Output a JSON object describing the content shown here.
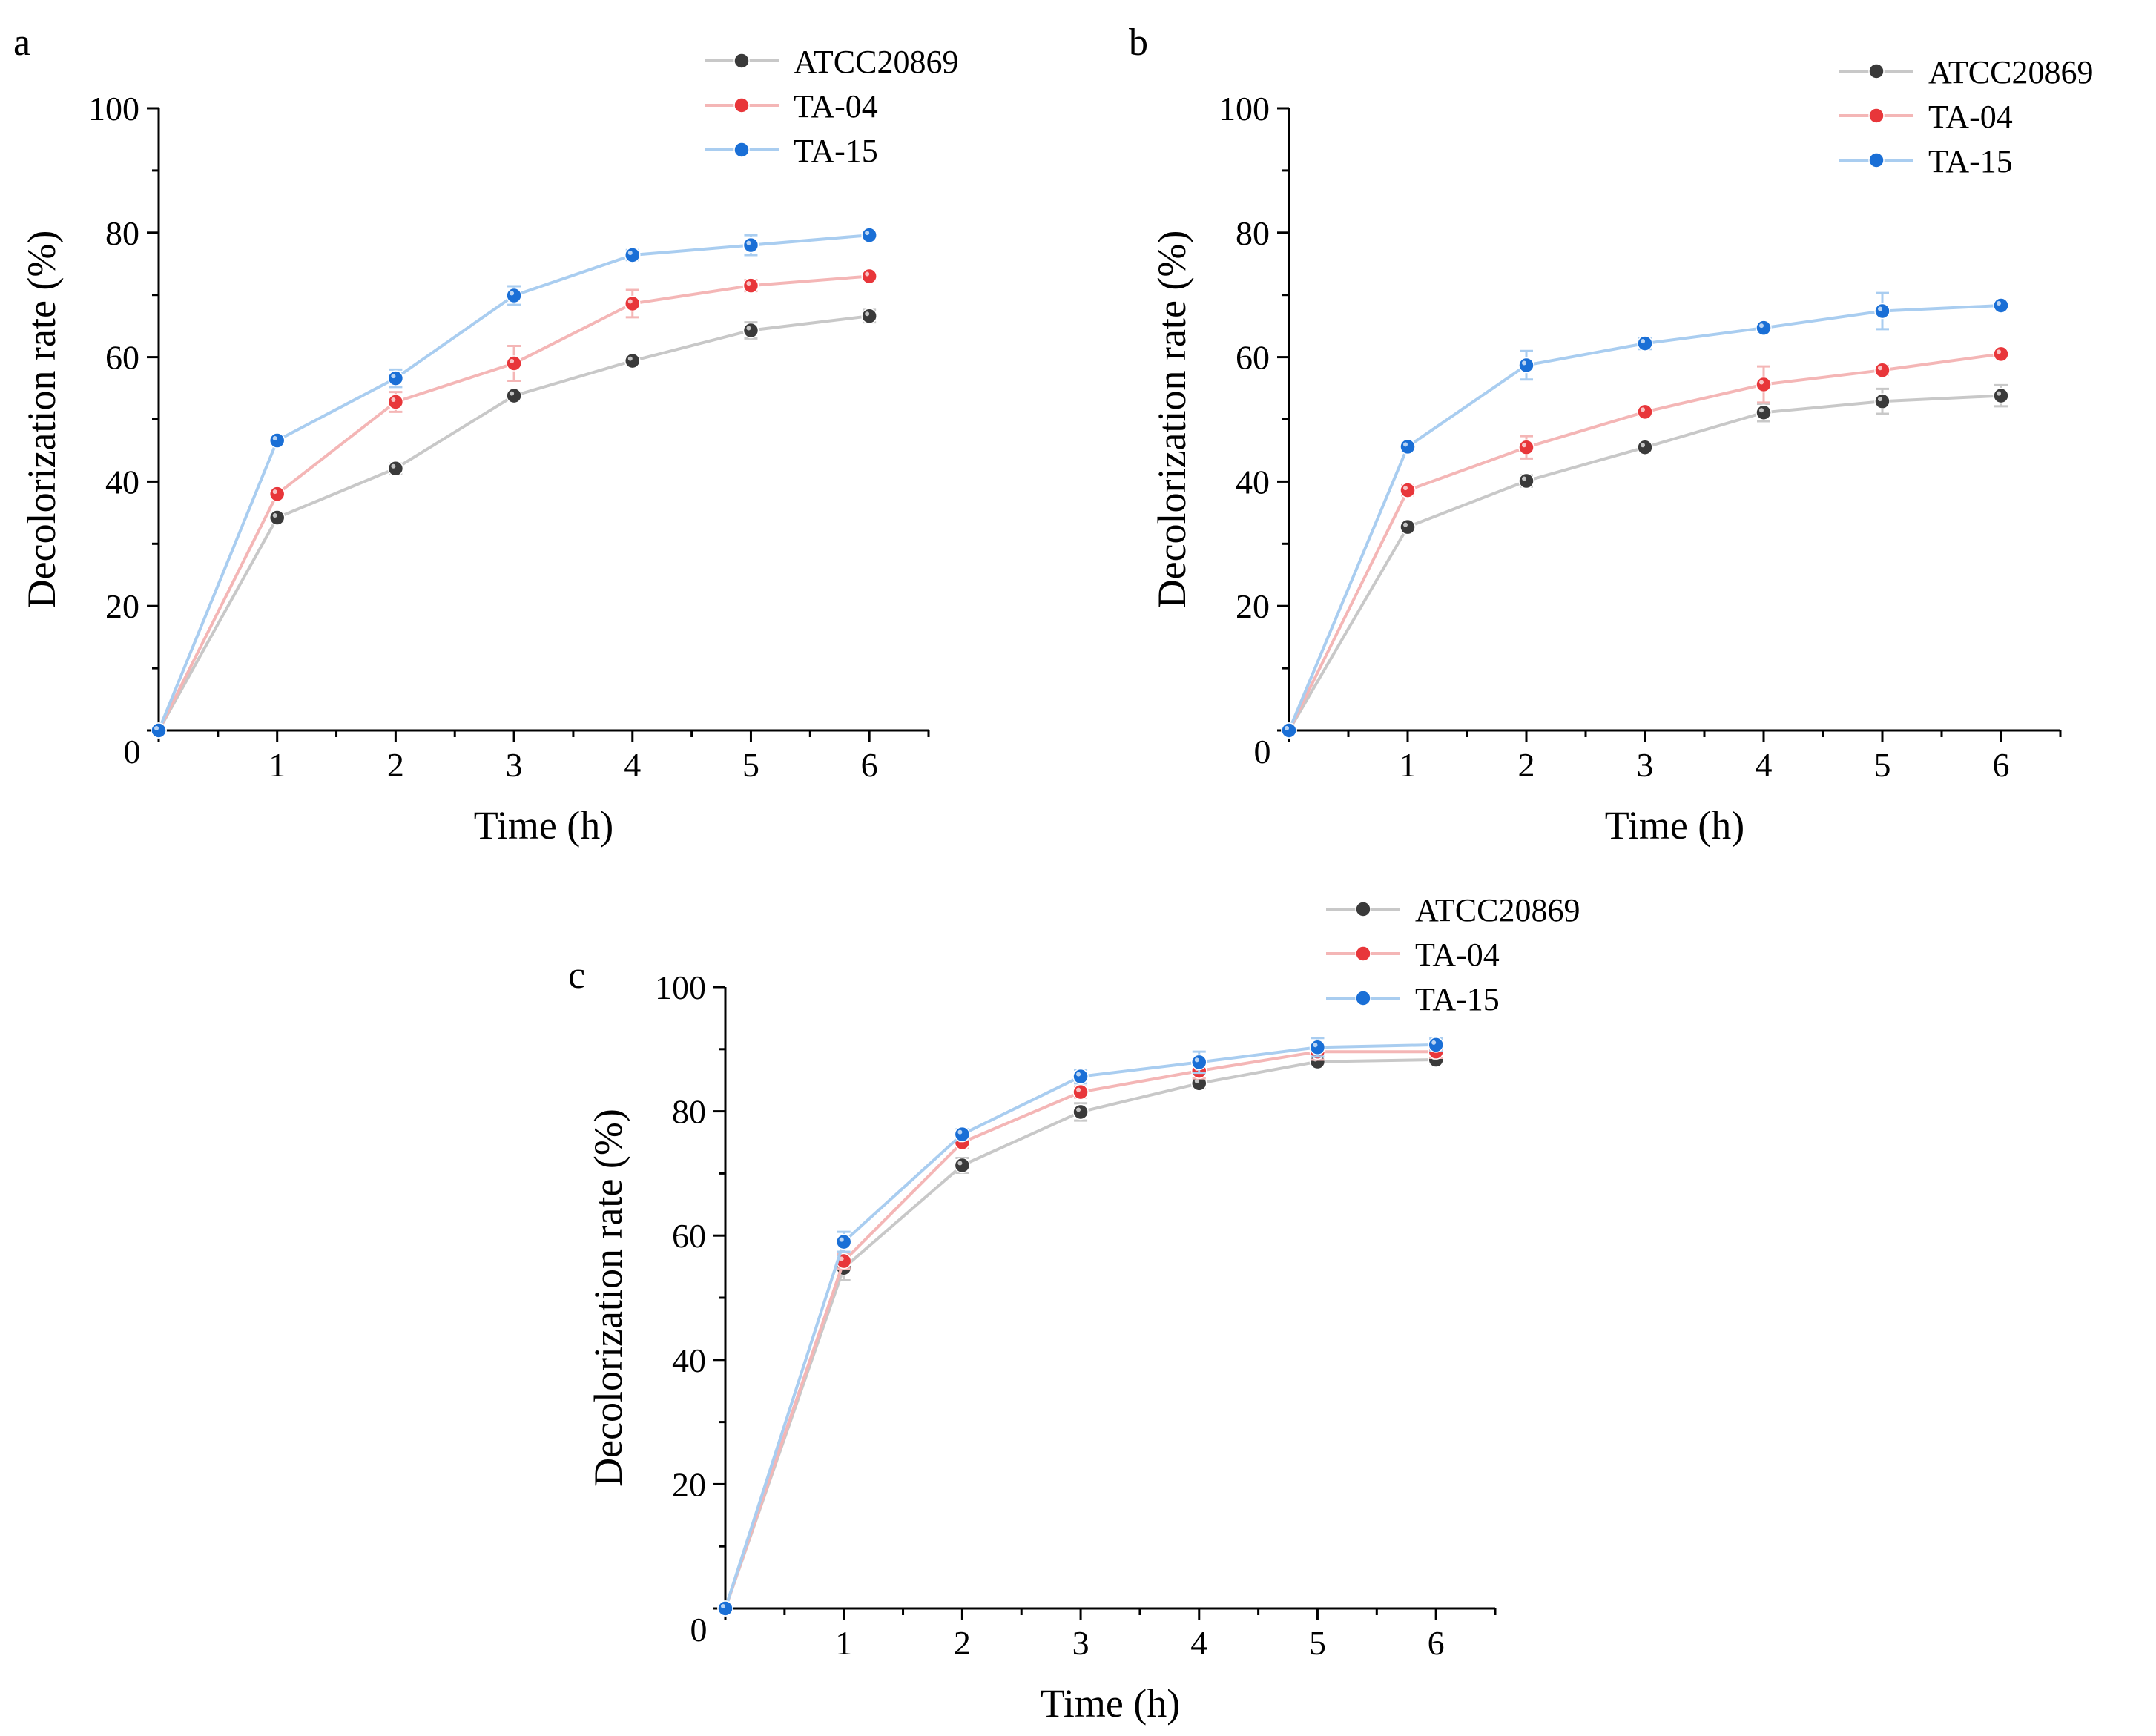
{
  "figure": {
    "colors": {
      "ATCC20869": {
        "line": "#c8c8c8",
        "marker": "#3a3a3a"
      },
      "TA-04": {
        "line": "#f4b6b6",
        "marker": "#e8363a"
      },
      "TA-15": {
        "line": "#a9cdf0",
        "marker": "#1a6fd6"
      }
    }
  },
  "chart_data": [
    {
      "panel": "a",
      "type": "line",
      "xlabel": "Time (h)",
      "ylabel": "Decolorization rate (%)",
      "xlim": [
        0,
        6.5
      ],
      "ylim": [
        0,
        100
      ],
      "x_ticks": [
        0,
        1,
        2,
        3,
        4,
        5,
        6
      ],
      "y_ticks": [
        0,
        20,
        40,
        60,
        80,
        100
      ],
      "legend_position": "top-right",
      "x": [
        0,
        1,
        2,
        3,
        4,
        5,
        6
      ],
      "series": [
        {
          "name": "ATCC20869",
          "values": [
            0,
            34.2,
            42.1,
            53.8,
            59.4,
            64.3,
            66.6
          ],
          "errors": [
            0,
            0.6,
            0.8,
            0.6,
            0.6,
            1.3,
            1.0
          ]
        },
        {
          "name": "TA-04",
          "values": [
            0,
            38.0,
            52.8,
            59.0,
            68.6,
            71.5,
            73.0
          ],
          "errors": [
            0,
            0.5,
            1.6,
            2.8,
            2.2,
            0.9,
            0.6
          ]
        },
        {
          "name": "TA-15",
          "values": [
            0,
            46.6,
            56.6,
            69.9,
            76.4,
            78.0,
            79.6
          ],
          "errors": [
            0,
            0.5,
            1.4,
            1.5,
            0.8,
            1.6,
            0.5
          ]
        }
      ]
    },
    {
      "panel": "b",
      "type": "line",
      "xlabel": "Time (h)",
      "ylabel": "Decolorization rate (%)",
      "xlim": [
        0,
        6.5
      ],
      "ylim": [
        0,
        100
      ],
      "x_ticks": [
        0,
        1,
        2,
        3,
        4,
        5,
        6
      ],
      "y_ticks": [
        0,
        20,
        40,
        60,
        80,
        100
      ],
      "legend_position": "top-right",
      "x": [
        0,
        1,
        2,
        3,
        4,
        5,
        6
      ],
      "series": [
        {
          "name": "ATCC20869",
          "values": [
            0,
            32.7,
            40.1,
            45.5,
            51.1,
            52.9,
            53.8
          ],
          "errors": [
            0,
            0.6,
            0.9,
            0.6,
            1.4,
            2.0,
            1.7
          ]
        },
        {
          "name": "TA-04",
          "values": [
            0,
            38.6,
            45.5,
            51.2,
            55.6,
            57.9,
            60.5
          ],
          "errors": [
            0,
            0.8,
            1.8,
            0.6,
            2.9,
            0.7,
            0.6
          ]
        },
        {
          "name": "TA-15",
          "values": [
            0,
            45.6,
            58.7,
            62.2,
            64.7,
            67.4,
            68.3
          ],
          "errors": [
            0,
            0.6,
            2.3,
            0.9,
            0.6,
            2.9,
            0.6
          ]
        }
      ]
    },
    {
      "panel": "c",
      "type": "line",
      "xlabel": "Time (h)",
      "ylabel": "Decolorization rate (%)",
      "xlim": [
        0,
        6.5
      ],
      "ylim": [
        0,
        100
      ],
      "x_ticks": [
        0,
        1,
        2,
        3,
        4,
        5,
        6
      ],
      "y_ticks": [
        0,
        20,
        40,
        60,
        80,
        100
      ],
      "legend_position": "top-right",
      "x": [
        0,
        1,
        2,
        3,
        4,
        5,
        6
      ],
      "series": [
        {
          "name": "ATCC20869",
          "values": [
            0,
            54.8,
            71.3,
            79.9,
            84.5,
            88.0,
            88.3
          ],
          "errors": [
            0,
            2.0,
            1.2,
            1.4,
            0.8,
            0.6,
            0.6
          ]
        },
        {
          "name": "TA-04",
          "values": [
            0,
            55.9,
            75.0,
            83.1,
            86.5,
            89.6,
            89.6
          ],
          "errors": [
            0,
            1.2,
            0.9,
            0.9,
            1.2,
            1.3,
            1.0
          ]
        },
        {
          "name": "TA-15",
          "values": [
            0,
            59.0,
            76.3,
            85.6,
            87.9,
            90.3,
            90.7
          ],
          "errors": [
            0,
            1.6,
            0.8,
            1.1,
            1.7,
            1.5,
            1.0
          ]
        }
      ]
    }
  ]
}
